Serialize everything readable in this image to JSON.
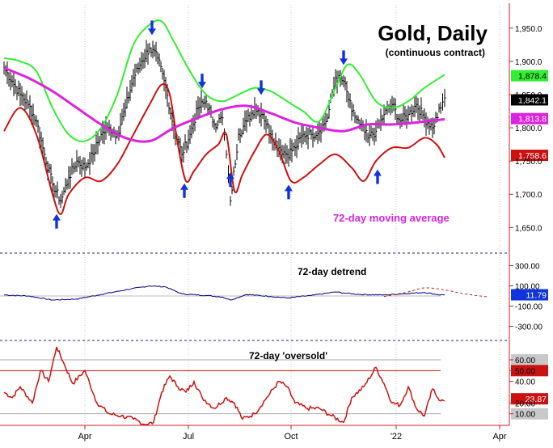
{
  "chart_data": {
    "type": "line",
    "title": "Gold, Daily",
    "subtitle": "(continuous contract)",
    "x_tick_labels": [
      "Apr",
      "Jul",
      "Oct",
      "'22",
      "Apr"
    ],
    "colors": {
      "price": "#000000",
      "upper_band": "#33ee33",
      "lower_band": "#cc1111",
      "moving_average": "#dd22dd",
      "detrend": "#000080",
      "oscillator": "#cc1111",
      "arrows": "#1133dd",
      "divider": "#1a237e"
    },
    "panels": [
      {
        "id": "price",
        "ylim": [
          1620,
          1985
        ],
        "y_tick_labels": [
          "1,950.0",
          "1,900.0",
          "1,850.0",
          "1,800.0",
          "1,750.0",
          "1,700.0",
          "1,650.0"
        ],
        "y_ticks": [
          1950,
          1900,
          1850,
          1800,
          1750,
          1700,
          1650
        ],
        "annotation": "72-day moving average",
        "value_labels": [
          {
            "text": "1,878.4",
            "value": 1878.4,
            "bg": "#33ee33",
            "fg": "#000000"
          },
          {
            "text": "1,842.1",
            "value": 1842.1,
            "bg": "#000000",
            "fg": "#ffffff"
          },
          {
            "text": "1,813.8",
            "value": 1813.8,
            "bg": "#dd22dd",
            "fg": "#ffffff"
          },
          {
            "text": "1,758.6",
            "value": 1758.6,
            "bg": "#cc1111",
            "fg": "#ffffff"
          }
        ],
        "series": {
          "price": [
            [
              0,
              1890
            ],
            [
              10,
              1870
            ],
            [
              20,
              1850
            ],
            [
              30,
              1835
            ],
            [
              40,
              1810
            ],
            [
              50,
              1760
            ],
            [
              60,
              1715
            ],
            [
              70,
              1690
            ],
            [
              80,
              1725
            ],
            [
              90,
              1750
            ],
            [
              100,
              1740
            ],
            [
              110,
              1760
            ],
            [
              120,
              1790
            ],
            [
              130,
              1800
            ],
            [
              140,
              1790
            ],
            [
              150,
              1830
            ],
            [
              160,
              1875
            ],
            [
              170,
              1900
            ],
            [
              180,
              1920
            ],
            [
              190,
              1905
            ],
            [
              200,
              1860
            ],
            [
              210,
              1800
            ],
            [
              220,
              1760
            ],
            [
              230,
              1790
            ],
            [
              240,
              1830
            ],
            [
              250,
              1840
            ],
            [
              260,
              1805
            ],
            [
              270,
              1815
            ],
            [
              275,
              1760
            ],
            [
              280,
              1690
            ],
            [
              290,
              1790
            ],
            [
              300,
              1810
            ],
            [
              310,
              1830
            ],
            [
              320,
              1820
            ],
            [
              330,
              1790
            ],
            [
              340,
              1770
            ],
            [
              350,
              1760
            ],
            [
              360,
              1770
            ],
            [
              370,
              1790
            ],
            [
              380,
              1790
            ],
            [
              390,
              1795
            ],
            [
              400,
              1815
            ],
            [
              410,
              1875
            ],
            [
              420,
              1870
            ],
            [
              430,
              1825
            ],
            [
              440,
              1805
            ],
            [
              450,
              1785
            ],
            [
              460,
              1795
            ],
            [
              470,
              1820
            ],
            [
              480,
              1835
            ],
            [
              490,
              1810
            ],
            [
              500,
              1820
            ],
            [
              510,
              1835
            ],
            [
              520,
              1815
            ],
            [
              530,
              1800
            ],
            [
              540,
              1830
            ],
            [
              545,
              1845
            ]
          ],
          "upper_band": [
            [
              0,
              1905
            ],
            [
              20,
              1900
            ],
            [
              40,
              1885
            ],
            [
              60,
              1830
            ],
            [
              80,
              1790
            ],
            [
              100,
              1780
            ],
            [
              120,
              1800
            ],
            [
              140,
              1850
            ],
            [
              160,
              1925
            ],
            [
              180,
              1955
            ],
            [
              195,
              1960
            ],
            [
              210,
              1930
            ],
            [
              230,
              1885
            ],
            [
              250,
              1850
            ],
            [
              270,
              1840
            ],
            [
              290,
              1850
            ],
            [
              310,
              1860
            ],
            [
              330,
              1855
            ],
            [
              350,
              1840
            ],
            [
              370,
              1825
            ],
            [
              390,
              1810
            ],
            [
              410,
              1860
            ],
            [
              425,
              1895
            ],
            [
              440,
              1880
            ],
            [
              460,
              1840
            ],
            [
              480,
              1830
            ],
            [
              500,
              1840
            ],
            [
              520,
              1860
            ],
            [
              545,
              1880
            ]
          ],
          "lower_band": [
            [
              0,
              1795
            ],
            [
              20,
              1830
            ],
            [
              40,
              1790
            ],
            [
              60,
              1700
            ],
            [
              70,
              1670
            ],
            [
              80,
              1700
            ],
            [
              100,
              1725
            ],
            [
              120,
              1720
            ],
            [
              140,
              1745
            ],
            [
              160,
              1790
            ],
            [
              180,
              1835
            ],
            [
              195,
              1865
            ],
            [
              205,
              1850
            ],
            [
              215,
              1775
            ],
            [
              225,
              1720
            ],
            [
              235,
              1735
            ],
            [
              250,
              1760
            ],
            [
              265,
              1775
            ],
            [
              275,
              1790
            ],
            [
              285,
              1705
            ],
            [
              295,
              1730
            ],
            [
              310,
              1765
            ],
            [
              325,
              1790
            ],
            [
              340,
              1765
            ],
            [
              355,
              1720
            ],
            [
              370,
              1725
            ],
            [
              390,
              1745
            ],
            [
              410,
              1760
            ],
            [
              430,
              1740
            ],
            [
              445,
              1720
            ],
            [
              460,
              1750
            ],
            [
              480,
              1770
            ],
            [
              500,
              1770
            ],
            [
              520,
              1785
            ],
            [
              535,
              1775
            ],
            [
              545,
              1755
            ]
          ],
          "moving_average": [
            [
              0,
              1890
            ],
            [
              30,
              1875
            ],
            [
              60,
              1855
            ],
            [
              90,
              1830
            ],
            [
              120,
              1805
            ],
            [
              150,
              1785
            ],
            [
              180,
              1780
            ],
            [
              210,
              1800
            ],
            [
              240,
              1815
            ],
            [
              270,
              1828
            ],
            [
              300,
              1833
            ],
            [
              330,
              1822
            ],
            [
              360,
              1808
            ],
            [
              390,
              1800
            ],
            [
              420,
              1795
            ],
            [
              450,
              1805
            ],
            [
              480,
              1805
            ],
            [
              510,
              1808
            ],
            [
              545,
              1813
            ]
          ]
        },
        "arrows_up_x": [
          65,
          223,
          280,
          352,
          462
        ],
        "arrows_down_x": [
          183,
          245,
          318,
          420
        ]
      },
      {
        "id": "detrend",
        "title": "72-day detrend",
        "ylim": [
          -400,
          400
        ],
        "y_tick_labels": [
          "300.00",
          "100.00",
          "-100.00",
          "-300.00"
        ],
        "y_ticks": [
          300,
          100,
          -100,
          -300
        ],
        "value_label": {
          "text": "11.79",
          "value": 11.79,
          "bg": "#1133dd",
          "fg": "#ffffff"
        },
        "series": {
          "detrend": [
            [
              0,
              10
            ],
            [
              30,
              0
            ],
            [
              60,
              -40
            ],
            [
              90,
              -30
            ],
            [
              120,
              15
            ],
            [
              150,
              60
            ],
            [
              180,
              100
            ],
            [
              200,
              90
            ],
            [
              220,
              20
            ],
            [
              250,
              5
            ],
            [
              270,
              -10
            ],
            [
              280,
              -40
            ],
            [
              300,
              15
            ],
            [
              330,
              -5
            ],
            [
              350,
              -20
            ],
            [
              380,
              5
            ],
            [
              410,
              40
            ],
            [
              420,
              30
            ],
            [
              440,
              15
            ],
            [
              470,
              10
            ],
            [
              500,
              25
            ],
            [
              520,
              35
            ],
            [
              540,
              10
            ],
            [
              545,
              11.79
            ]
          ],
          "projection": [
            [
              470,
              -5
            ],
            [
              500,
              40
            ],
            [
              520,
              80
            ],
            [
              545,
              60
            ],
            [
              570,
              20
            ],
            [
              600,
              -10
            ]
          ]
        }
      },
      {
        "id": "oscillator",
        "title": "72-day 'oversold'",
        "ylim": [
          0,
          75
        ],
        "y_tick_labels": [
          "60.00",
          "50.00",
          "40.00",
          "20.00",
          "10.00"
        ],
        "y_ticks": [
          60,
          50,
          40,
          20,
          10
        ],
        "reference_lines": [
          60,
          50,
          10
        ],
        "value_label": {
          "text": "23.87",
          "value": 23.87,
          "bg": "#cc1111",
          "fg": "#ffffff"
        },
        "series": {
          "oscillator": [
            [
              0,
              30
            ],
            [
              10,
              25
            ],
            [
              20,
              35
            ],
            [
              35,
              20
            ],
            [
              45,
              50
            ],
            [
              55,
              40
            ],
            [
              65,
              72
            ],
            [
              75,
              55
            ],
            [
              85,
              38
            ],
            [
              100,
              50
            ],
            [
              115,
              20
            ],
            [
              130,
              10
            ],
            [
              145,
              8
            ],
            [
              160,
              5
            ],
            [
              175,
              0
            ],
            [
              185,
              2
            ],
            [
              195,
              30
            ],
            [
              205,
              45
            ],
            [
              215,
              35
            ],
            [
              225,
              30
            ],
            [
              235,
              40
            ],
            [
              245,
              25
            ],
            [
              260,
              15
            ],
            [
              275,
              25
            ],
            [
              285,
              20
            ],
            [
              295,
              5
            ],
            [
              310,
              10
            ],
            [
              325,
              25
            ],
            [
              340,
              40
            ],
            [
              350,
              35
            ],
            [
              360,
              20
            ],
            [
              375,
              15
            ],
            [
              390,
              15
            ],
            [
              405,
              8
            ],
            [
              420,
              2
            ],
            [
              430,
              25
            ],
            [
              445,
              35
            ],
            [
              460,
              53
            ],
            [
              470,
              38
            ],
            [
              480,
              20
            ],
            [
              490,
              18
            ],
            [
              500,
              35
            ],
            [
              510,
              15
            ],
            [
              520,
              8
            ],
            [
              530,
              33
            ],
            [
              540,
              22
            ],
            [
              545,
              22
            ]
          ]
        }
      }
    ]
  }
}
